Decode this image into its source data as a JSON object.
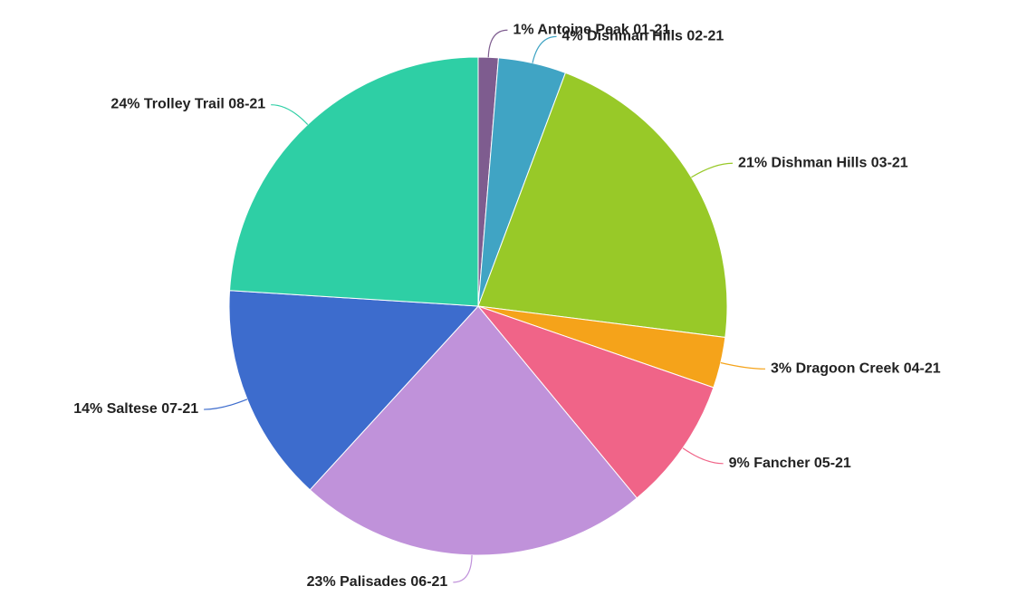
{
  "chart_data": {
    "type": "pie",
    "categories": [
      "Antoine Peak 01-21",
      "Dishman Hills 02-21",
      "Dishman Hills 03-21",
      "Dragoon Creek 04-21",
      "Fancher 05-21",
      "Palisades 06-21",
      "Saltese 07-21",
      "Trolley Trail 08-21"
    ],
    "values": [
      1.3,
      4.4,
      21.3,
      3.3,
      8.7,
      22.8,
      14.2,
      24.0
    ],
    "value_labels": [
      "1%",
      "4%",
      "21%",
      "3%",
      "9%",
      "23%",
      "14%",
      "24%"
    ],
    "colors": [
      "#7e5c8f",
      "#40a4c4",
      "#98c928",
      "#f5a31a",
      "#f06488",
      "#c092da",
      "#3d6ccd",
      "#2ecfa5"
    ]
  }
}
